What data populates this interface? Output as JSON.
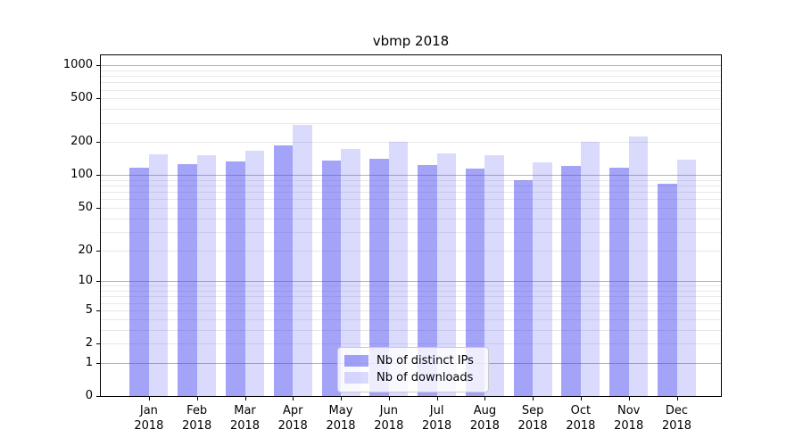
{
  "figure": {
    "title": "vbmp 2018"
  },
  "chart_data": {
    "type": "bar",
    "title": "vbmp 2018",
    "x_categories": [
      {
        "month": "Jan",
        "year": "2018"
      },
      {
        "month": "Feb",
        "year": "2018"
      },
      {
        "month": "Mar",
        "year": "2018"
      },
      {
        "month": "Apr",
        "year": "2018"
      },
      {
        "month": "May",
        "year": "2018"
      },
      {
        "month": "Jun",
        "year": "2018"
      },
      {
        "month": "Jul",
        "year": "2018"
      },
      {
        "month": "Aug",
        "year": "2018"
      },
      {
        "month": "Sep",
        "year": "2018"
      },
      {
        "month": "Oct",
        "year": "2018"
      },
      {
        "month": "Nov",
        "year": "2018"
      },
      {
        "month": "Dec",
        "year": "2018"
      }
    ],
    "series": [
      {
        "name": "Nb of distinct IPs",
        "color": "rgba(68,68,238,0.49)",
        "values": [
          116,
          125,
          134,
          188,
          136,
          142,
          124,
          115,
          89,
          122,
          117,
          83
        ]
      },
      {
        "name": "Nb of downloads",
        "color": "rgba(68,68,238,0.20)",
        "values": [
          155,
          151,
          167,
          285,
          172,
          201,
          158,
          153,
          130,
          200,
          227,
          139
        ]
      }
    ],
    "yscale": "log1p",
    "ylim": [
      0,
      1230
    ],
    "yticks": [
      0,
      1,
      2,
      5,
      10,
      20,
      50,
      100,
      200,
      500,
      1000
    ],
    "grid": {
      "orientation": "horizontal",
      "major_at": [
        1,
        10,
        100,
        1000
      ],
      "major_color": "#b3b3b3",
      "minor_color": "#e8e8e8"
    },
    "legend_position": "lower-center-inside",
    "xlabel": "",
    "ylabel": ""
  }
}
